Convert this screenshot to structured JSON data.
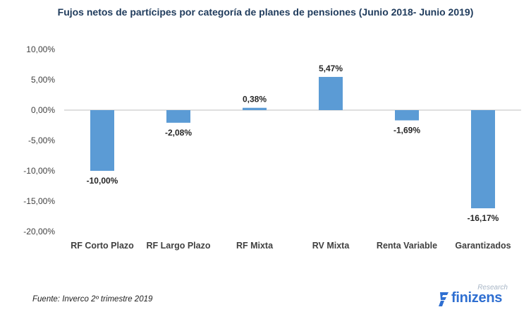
{
  "chart_data": {
    "type": "bar",
    "title": "Fujos netos de partícipes por categoría de planes de pensiones (Junio 2018- Junio 2019)",
    "categories": [
      "RF Corto Plazo",
      "RF Largo Plazo",
      "RF Mixta",
      "RV Mixta",
      "Renta Variable",
      "Garantizados"
    ],
    "values": [
      -10.0,
      -2.08,
      0.38,
      5.47,
      -1.69,
      -16.17
    ],
    "data_labels": [
      "-10,00%",
      "-2,08%",
      "0,38%",
      "5,47%",
      "-1,69%",
      "-16,17%"
    ],
    "yticks": [
      10,
      5,
      0,
      -5,
      -10,
      -15,
      -20
    ],
    "ytick_labels": [
      "10,00%",
      "5,00%",
      "0,00%",
      "-5,00%",
      "-10,00%",
      "-15,00%",
      "-20,00%"
    ],
    "ylim": [
      -20,
      10
    ],
    "grid": false,
    "legend": false,
    "bar_color": "#5b9bd5"
  },
  "footer": {
    "source": "Fuente:  Inverco 2º trimestre  2019"
  },
  "brand": {
    "wordmark": "finizens",
    "tagline": "Research",
    "color": "#2f6fd1"
  }
}
